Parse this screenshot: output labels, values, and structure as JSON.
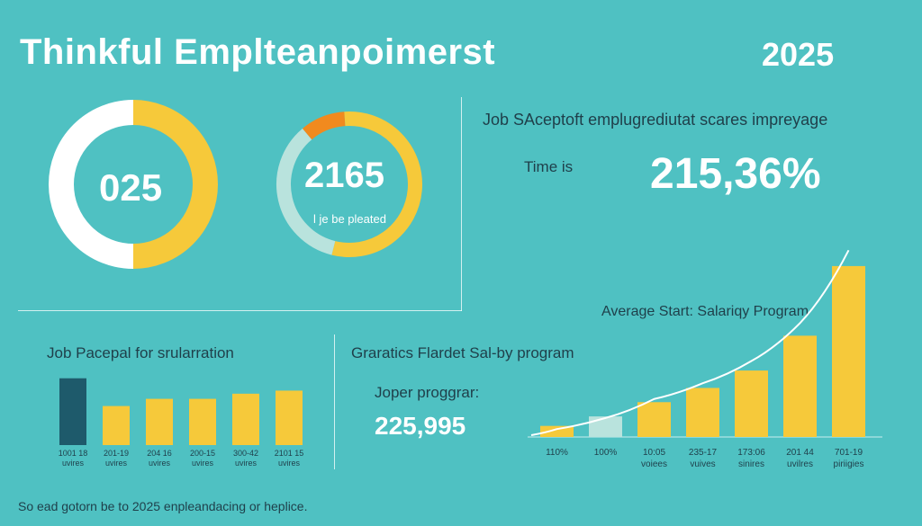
{
  "header": {
    "title": "Thinkful Emplteanpoimerst",
    "year": "2025"
  },
  "donuts": [
    {
      "label": "025",
      "caption": ""
    },
    {
      "label": "2165",
      "caption": "l je be pleated"
    }
  ],
  "top_right": {
    "heading": "Job SAceptoft emplugrediutat scares impreyage",
    "time_label": "Time is",
    "big_value": "215,36%"
  },
  "bottom_left": {
    "title": "Job Pacepal for srularration"
  },
  "middle": {
    "title": "Graratics Flardet Sal-by program",
    "label": "Joper proggrar:",
    "value": "225,995"
  },
  "right_chart": {
    "title": "Average Start: Salariqy Program"
  },
  "footer": {
    "text": "So ead gotorn be to 2025 enpleandacing or heplice."
  },
  "colors": {
    "background": "#4fc1c2",
    "yellow": "#f6c93a",
    "orange": "#f18a1e",
    "dark_teal": "#1e5a6b",
    "white": "#ffffff"
  },
  "chart_data": [
    {
      "type": "pie",
      "center_label": "025",
      "segments": [
        {
          "value": 50,
          "color": "#f6c93a"
        },
        {
          "value": 50,
          "color": "#ffffff"
        }
      ]
    },
    {
      "type": "pie",
      "center_label": "2165",
      "segments": [
        {
          "value": 10,
          "color": "#f18a1e"
        },
        {
          "value": 55,
          "color": "#f6c93a"
        },
        {
          "value": 35,
          "color": "#b9e3dd"
        }
      ]
    },
    {
      "type": "bar",
      "title": "Job Pacepal for srularration",
      "categories": [
        "1001 18\nuvires",
        "201-19\nuvires",
        "204 16\nuvires",
        "200-15\nuvires",
        "300-42\nuvires",
        "2101 15\nuvires"
      ],
      "values": [
        65,
        38,
        45,
        45,
        50,
        53
      ],
      "ylim": [
        0,
        70
      ],
      "colors": [
        "#1e5a6b",
        "#f6c93a",
        "#f6c93a",
        "#f6c93a",
        "#f6c93a",
        "#f6c93a"
      ]
    },
    {
      "type": "bar",
      "title": "Average Start: Salariqy Program",
      "categories": [
        "110%",
        "100%",
        "10:05\nvoiees",
        "235-17\nvuives",
        "173:06\nsinires",
        "201 44\nuvilres",
        "701-19\npiriigies"
      ],
      "values": [
        7,
        13,
        22,
        31,
        42,
        64,
        108
      ],
      "line": [
        5,
        12,
        24,
        34,
        48,
        72,
        118
      ],
      "ylim": [
        0,
        125
      ],
      "colors": [
        "#f6c93a",
        "#b9e3dd",
        "#f6c93a",
        "#f6c93a",
        "#f6c93a",
        "#f6c93a",
        "#f6c93a"
      ]
    }
  ]
}
